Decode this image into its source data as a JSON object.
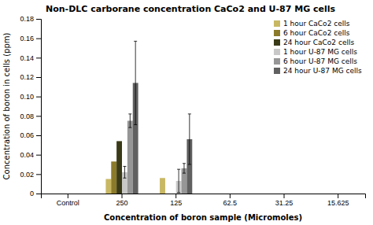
{
  "chart_data": {
    "type": "bar",
    "title": "Non-DLC carborane concentration CaCo2 and U-87 MG cells",
    "xlabel": "Concentration of boron sample (Micromoles)",
    "ylabel": "Concentration of boron in cells (ppm)",
    "categories": [
      "Control",
      "250",
      "125",
      "62.5",
      "31.25",
      "15.625"
    ],
    "series": [
      {
        "name": "1 hour CaCo2 cells",
        "color": "#c8b864",
        "values": [
          0.0,
          0.015,
          0.016,
          0.0,
          0.0,
          0.0
        ],
        "errors": [
          0.0,
          0.0,
          0.0,
          0.0,
          0.0,
          0.0
        ]
      },
      {
        "name": "6 hour CaCo2 cells",
        "color": "#8b7a2a",
        "values": [
          0.0,
          0.033,
          0.0,
          0.0,
          0.0,
          0.0
        ],
        "errors": [
          0.0,
          0.0,
          0.0,
          0.0,
          0.0,
          0.0
        ]
      },
      {
        "name": "24 hour CaCo2 cells",
        "color": "#3a3a18",
        "values": [
          0.0,
          0.054,
          0.0,
          0.0,
          0.0,
          0.0
        ],
        "errors": [
          0.0,
          0.0,
          0.0,
          0.0,
          0.0,
          0.0
        ]
      },
      {
        "name": "1 hour U-87 MG cells",
        "color": "#c8c8c8",
        "values": [
          0.0,
          0.022,
          0.013,
          0.0,
          0.0,
          0.0
        ],
        "errors": [
          0.0,
          0.006,
          0.012,
          0.0,
          0.0,
          0.0
        ]
      },
      {
        "name": "6 hour U-87 MG cells",
        "color": "#969696",
        "values": [
          0.0,
          0.075,
          0.026,
          0.0,
          0.0,
          0.0
        ],
        "errors": [
          0.0,
          0.007,
          0.005,
          0.0,
          0.0,
          0.0
        ]
      },
      {
        "name": "24 hour U-87 MG cells",
        "color": "#606060",
        "values": [
          0.0,
          0.114,
          0.056,
          0.0,
          0.0,
          0.0
        ],
        "errors": [
          0.0,
          0.043,
          0.026,
          0.0,
          0.0,
          0.0
        ]
      }
    ],
    "ylim": [
      0,
      0.18
    ],
    "yticks": [
      0,
      0.02,
      0.04,
      0.06,
      0.08,
      {
        "value": 0.1,
        "label": "0.10"
      },
      0.12,
      0.14,
      0.16,
      0.18
    ],
    "legend": "upper right"
  }
}
